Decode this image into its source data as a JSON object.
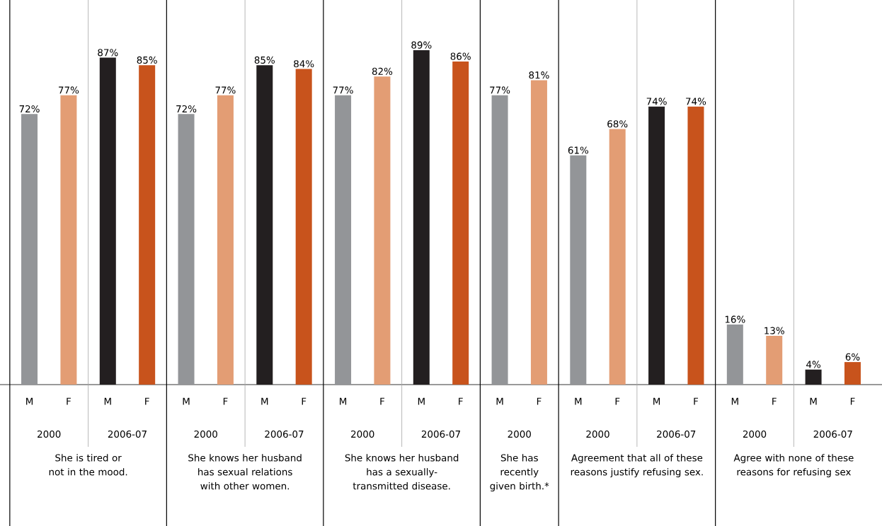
{
  "chart_data": {
    "type": "bar",
    "categories": [
      "M",
      "F",
      "M",
      "F",
      "M",
      "F",
      "M",
      "F",
      "M",
      "F",
      "M",
      "F",
      "M",
      "F",
      "M",
      "F",
      "M",
      "F",
      "M",
      "F",
      "M",
      "F"
    ],
    "values": [
      72,
      77,
      87,
      85,
      72,
      77,
      85,
      84,
      77,
      82,
      89,
      86,
      77,
      81,
      61,
      68,
      74,
      74,
      16,
      13,
      4,
      6
    ],
    "value_labels": [
      "72%",
      "77%",
      "87%",
      "85%",
      "72%",
      "77%",
      "85%",
      "84%",
      "77%",
      "82%",
      "89%",
      "86%",
      "77%",
      "81%",
      "61%",
      "68%",
      "74%",
      "74%",
      "16%",
      "13%",
      "4%",
      "6%"
    ],
    "colors": [
      "#939598",
      "#e39d74",
      "#231f20",
      "#c8531c",
      "#939598",
      "#e39d74",
      "#231f20",
      "#c8531c",
      "#939598",
      "#e39d74",
      "#231f20",
      "#c8531c",
      "#939598",
      "#e39d74",
      "#939598",
      "#e39d74",
      "#231f20",
      "#c8531c",
      "#939598",
      "#e39d74",
      "#231f20",
      "#c8531c"
    ],
    "annotations": [
      "2000",
      "2006-07",
      "2000",
      "2006-07",
      "2000",
      "2006-07",
      "2000",
      "2000",
      "2006-07",
      "2000",
      "2006-07",
      "She is tired or not in the mood.",
      "She knows her husband has sexual relations with other women.",
      "She knows her husband has a sexually-transmitted disease.",
      "She has recently given birth.*",
      "Agreement that all of these reasons justify refusing sex.",
      "Agree with none of these reasons for refusing sex"
    ]
  }
}
